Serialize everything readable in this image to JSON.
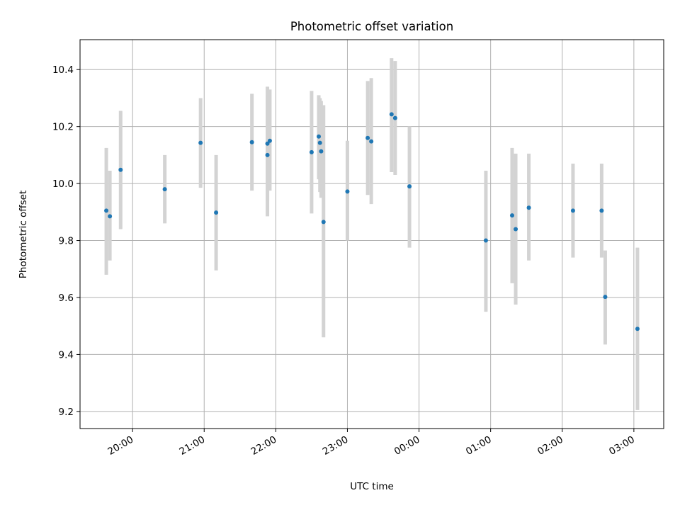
{
  "chart_data": {
    "type": "scatter",
    "title": "Photometric offset variation",
    "xlabel": "UTC time",
    "ylabel": "Photometric offset",
    "x_axis": {
      "type": "time",
      "xlim": [
        "19:16",
        "03:25"
      ],
      "ticks": [
        {
          "value": "20:00",
          "label": "20:00"
        },
        {
          "value": "21:00",
          "label": "21:00"
        },
        {
          "value": "22:00",
          "label": "22:00"
        },
        {
          "value": "23:00",
          "label": "23:00"
        },
        {
          "value": "00:00",
          "label": "00:00"
        },
        {
          "value": "01:00",
          "label": "01:00"
        },
        {
          "value": "02:00",
          "label": "02:00"
        },
        {
          "value": "03:00",
          "label": "03:00"
        }
      ]
    },
    "y_axis": {
      "ylim": [
        9.14,
        10.505
      ],
      "ticks": [
        {
          "value": 9.2,
          "label": "9.2"
        },
        {
          "value": 9.4,
          "label": "9.4"
        },
        {
          "value": 9.6,
          "label": "9.6"
        },
        {
          "value": 9.8,
          "label": "9.8"
        },
        {
          "value": 10.0,
          "label": "10.0"
        },
        {
          "value": 10.2,
          "label": "10.2"
        },
        {
          "value": 10.4,
          "label": "10.4"
        }
      ]
    },
    "grid": true,
    "marker_color": "#1f77b4",
    "errorbar_color": "#d3d3d3",
    "points": [
      {
        "time": "19:38",
        "y": 9.905,
        "low": 9.68,
        "high": 10.125
      },
      {
        "time": "19:41",
        "y": 9.885,
        "low": 9.73,
        "high": 10.045
      },
      {
        "time": "19:50",
        "y": 10.048,
        "low": 9.84,
        "high": 10.255
      },
      {
        "time": "20:27",
        "y": 9.98,
        "low": 9.86,
        "high": 10.1
      },
      {
        "time": "20:57",
        "y": 10.143,
        "low": 9.985,
        "high": 10.3
      },
      {
        "time": "21:10",
        "y": 9.898,
        "low": 9.695,
        "high": 10.1
      },
      {
        "time": "21:40",
        "y": 10.145,
        "low": 9.975,
        "high": 10.315
      },
      {
        "time": "21:53",
        "y": 10.1,
        "low": 9.885,
        "high": 10.31
      },
      {
        "time": "21:53",
        "y": 10.14,
        "low": 9.94,
        "high": 10.34
      },
      {
        "time": "21:55",
        "y": 10.15,
        "low": 9.975,
        "high": 10.33
      },
      {
        "time": "22:30",
        "y": 10.11,
        "low": 9.895,
        "high": 10.325
      },
      {
        "time": "22:36",
        "y": 10.165,
        "low": 10.015,
        "high": 10.31
      },
      {
        "time": "22:37",
        "y": 10.143,
        "low": 9.97,
        "high": 10.3
      },
      {
        "time": "22:38",
        "y": 10.113,
        "low": 9.95,
        "high": 10.29
      },
      {
        "time": "22:40",
        "y": 9.865,
        "low": 9.46,
        "high": 10.275
      },
      {
        "time": "23:00",
        "y": 9.972,
        "low": 9.8,
        "high": 10.15
      },
      {
        "time": "23:17",
        "y": 10.16,
        "low": 9.96,
        "high": 10.36
      },
      {
        "time": "23:20",
        "y": 10.148,
        "low": 9.928,
        "high": 10.37
      },
      {
        "time": "23:37",
        "y": 10.243,
        "low": 10.04,
        "high": 10.44
      },
      {
        "time": "23:40",
        "y": 10.23,
        "low": 10.03,
        "high": 10.43
      },
      {
        "time": "23:52",
        "y": 9.99,
        "low": 9.775,
        "high": 10.2
      },
      {
        "time": "00:56",
        "y": 9.8,
        "low": 9.55,
        "high": 10.045
      },
      {
        "time": "01:18",
        "y": 9.888,
        "low": 9.65,
        "high": 10.125
      },
      {
        "time": "01:21",
        "y": 9.84,
        "low": 9.575,
        "high": 10.105
      },
      {
        "time": "01:32",
        "y": 9.915,
        "low": 9.73,
        "high": 10.105
      },
      {
        "time": "02:09",
        "y": 9.905,
        "low": 9.74,
        "high": 10.07
      },
      {
        "time": "02:33",
        "y": 9.905,
        "low": 9.74,
        "high": 10.07
      },
      {
        "time": "02:36",
        "y": 9.602,
        "low": 9.435,
        "high": 9.765
      },
      {
        "time": "03:03",
        "y": 9.49,
        "low": 9.205,
        "high": 9.775
      }
    ]
  }
}
